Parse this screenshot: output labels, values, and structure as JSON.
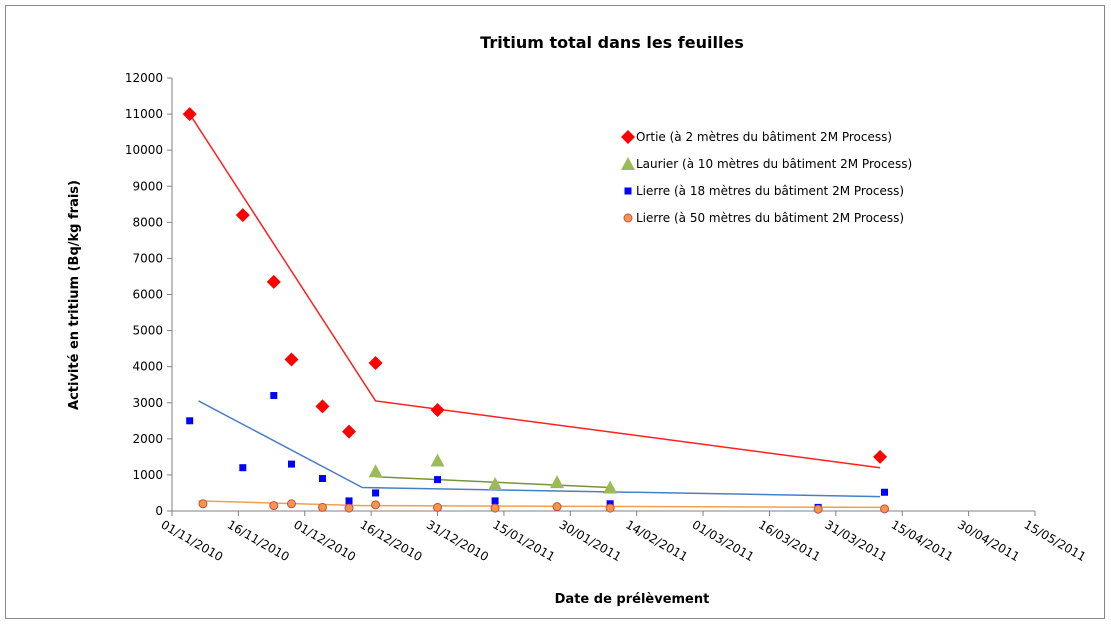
{
  "chart_data": {
    "type": "scatter",
    "title": "Tritium total dans les feuilles",
    "xlabel": "Date de prélèvement",
    "ylabel": "Activité en tritium (Bq/kg frais)",
    "xlim": [
      "01/11/2010",
      "15/05/2011"
    ],
    "xticks": [
      "01/11/2010",
      "16/11/2010",
      "01/12/2010",
      "16/12/2010",
      "31/12/2010",
      "15/01/2011",
      "30/01/2011",
      "14/02/2011",
      "01/03/2011",
      "16/03/2011",
      "31/03/2011",
      "15/04/2011",
      "30/04/2011",
      "15/05/2011"
    ],
    "ylim": [
      0,
      12000
    ],
    "yticks": [
      0,
      1000,
      2000,
      3000,
      4000,
      5000,
      6000,
      7000,
      8000,
      9000,
      10000,
      11000,
      12000
    ],
    "legend": "upper right",
    "series": [
      {
        "name": "Ortie (à 2 mètres du bâtiment 2M Process)",
        "color": "#ff0000",
        "marker": "diamond",
        "x": [
          "05/11/2010",
          "17/11/2010",
          "24/11/2010",
          "28/11/2010",
          "05/12/2010",
          "11/12/2010",
          "17/12/2010",
          "31/12/2010",
          "10/04/2011"
        ],
        "values": [
          11000,
          8200,
          6350,
          4200,
          2900,
          2200,
          4100,
          2800,
          1500
        ],
        "trend": {
          "color": "#ff2020",
          "x": [
            "05/11/2010",
            "17/12/2010",
            "10/04/2011"
          ],
          "values": [
            11000,
            3050,
            1200
          ]
        }
      },
      {
        "name": "Laurier (à 10 mètres du bâtiment 2M Process)",
        "color": "#9bbb59",
        "marker": "triangle",
        "x": [
          "17/12/2010",
          "31/12/2010",
          "13/01/2011",
          "27/01/2011",
          "08/02/2011"
        ],
        "values": [
          1100,
          1400,
          750,
          800,
          650
        ],
        "trend": {
          "color": "#77933c",
          "x": [
            "17/12/2010",
            "08/02/2011"
          ],
          "values": [
            950,
            650
          ]
        }
      },
      {
        "name": "Lierre (à 18 mètres du bâtiment 2M Process)",
        "color": "#0000ff",
        "marker": "square",
        "x": [
          "05/11/2010",
          "17/11/2010",
          "24/11/2010",
          "28/11/2010",
          "05/12/2010",
          "11/12/2010",
          "17/12/2010",
          "31/12/2010",
          "13/01/2011",
          "08/02/2011",
          "27/03/2011",
          "11/04/2011"
        ],
        "values": [
          2500,
          1200,
          3200,
          1300,
          900,
          280,
          500,
          870,
          280,
          200,
          100,
          520
        ],
        "trend": {
          "color": "#4a7ec4",
          "x": [
            "07/11/2010",
            "14/12/2010",
            "10/04/2011"
          ],
          "values": [
            3050,
            650,
            400
          ]
        }
      },
      {
        "name": "Lierre (à 50 mètres du bâtiment 2M Process)",
        "color": "#f79646",
        "marker": "circle",
        "x": [
          "08/11/2010",
          "24/11/2010",
          "28/11/2010",
          "05/12/2010",
          "11/12/2010",
          "17/12/2010",
          "31/12/2010",
          "13/01/2011",
          "27/01/2011",
          "08/02/2011",
          "27/03/2011",
          "11/04/2011"
        ],
        "values": [
          200,
          150,
          200,
          100,
          80,
          170,
          100,
          80,
          120,
          80,
          50,
          60
        ],
        "trend": {
          "color": "#f0a050",
          "x": [
            "07/11/2010",
            "14/12/2010",
            "10/04/2011"
          ],
          "values": [
            280,
            150,
            100
          ]
        }
      }
    ]
  }
}
